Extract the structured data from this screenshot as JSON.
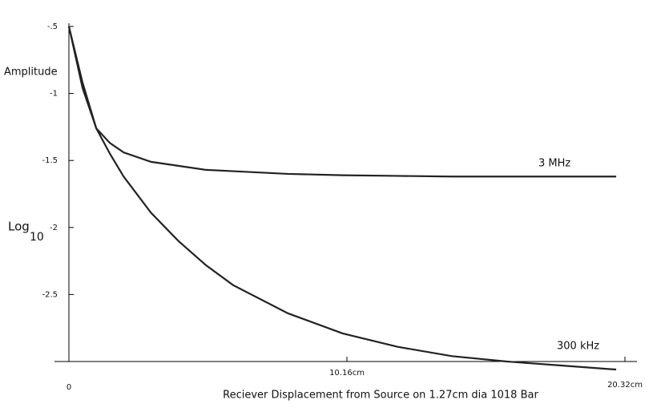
{
  "chart_data": {
    "type": "line",
    "x_label": "Reciever Displacement from Source on 1.27cm dia 1018 Bar",
    "y_label_top": "Amplitude",
    "y_label": "Log",
    "y_label_subscript": "10",
    "x": [
      0,
      0.5,
      1,
      1.5,
      2,
      3,
      4,
      5,
      6,
      8,
      10,
      12,
      14,
      16,
      18,
      20
    ],
    "series": [
      {
        "name": "3 MHz",
        "color": "#222222",
        "values": [
          -0.5,
          -0.96,
          -1.26,
          -1.37,
          -1.44,
          -1.51,
          -1.54,
          -1.57,
          -1.58,
          -1.6,
          -1.61,
          -1.615,
          -1.62,
          -1.62,
          -1.62,
          -1.62
        ]
      },
      {
        "name": "300 kHz",
        "color": "#222222",
        "values": [
          -0.5,
          -0.92,
          -1.26,
          -1.45,
          -1.62,
          -1.89,
          -2.1,
          -2.28,
          -2.43,
          -2.64,
          -2.79,
          -2.89,
          -2.96,
          -3.0,
          -3.03,
          -3.06
        ]
      }
    ],
    "xlim": [
      0,
      20.32
    ],
    "xticks": [
      0,
      {
        "value": 10.16,
        "label": "10.16cm"
      },
      {
        "value": 20.32,
        "label": "20.32cm"
      }
    ],
    "ylim": [
      -3,
      -0.5
    ],
    "yticks": [
      {
        "value": -0.5,
        "label": "-.5"
      },
      -1,
      -1.5,
      -2,
      -2.5
    ]
  }
}
